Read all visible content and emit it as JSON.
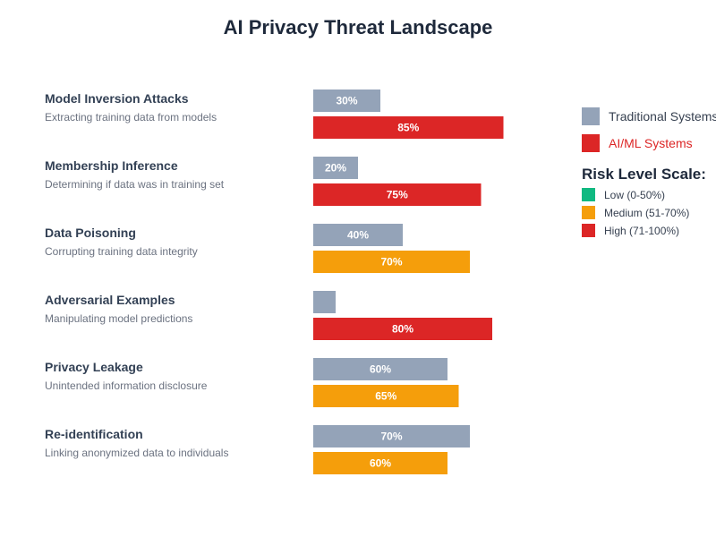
{
  "chart_data": {
    "type": "bar",
    "orientation": "horizontal",
    "title": "AI Privacy Threat Landscape",
    "xlabel": "",
    "ylabel": "",
    "xlim": [
      0,
      100
    ],
    "unit": "%",
    "categories": [
      {
        "name": "Model Inversion Attacks",
        "description": "Extracting training data from models"
      },
      {
        "name": "Membership Inference",
        "description": "Determining if data was in training set"
      },
      {
        "name": "Data Poisoning",
        "description": "Corrupting training data integrity"
      },
      {
        "name": "Adversarial Examples",
        "description": "Manipulating model predictions"
      },
      {
        "name": "Privacy Leakage",
        "description": "Unintended information disclosure"
      },
      {
        "name": "Re-identification",
        "description": "Linking anonymized data to individuals"
      }
    ],
    "series": [
      {
        "name": "Traditional Systems",
        "color": "#94a3b8",
        "values": [
          30,
          20,
          40,
          10,
          60,
          70
        ],
        "labels": [
          "30%",
          "20%",
          "40%",
          "",
          "60%",
          "70%"
        ]
      },
      {
        "name": "AI/ML Systems",
        "color": "#dc2626",
        "values": [
          85,
          75,
          70,
          80,
          65,
          60
        ],
        "labels": [
          "85%",
          "75%",
          "70%",
          "80%",
          "65%",
          "60%"
        ],
        "colored_by_risk": true
      }
    ],
    "legend": {
      "position": "right",
      "items": [
        {
          "label": "Traditional Systems",
          "color": "#94a3b8",
          "text_color": "#374151"
        },
        {
          "label": "AI/ML Systems",
          "color": "#dc2626",
          "text_color": "#dc2626"
        }
      ]
    },
    "risk_scale": {
      "title": "Risk Level Scale:",
      "levels": [
        {
          "label": "Low (0-50%)",
          "min": 0,
          "max": 50,
          "color": "#10b981"
        },
        {
          "label": "Medium (51-70%)",
          "min": 51,
          "max": 70,
          "color": "#f59e0b"
        },
        {
          "label": "High (71-100%)",
          "min": 71,
          "max": 100,
          "color": "#dc2626"
        }
      ]
    }
  }
}
